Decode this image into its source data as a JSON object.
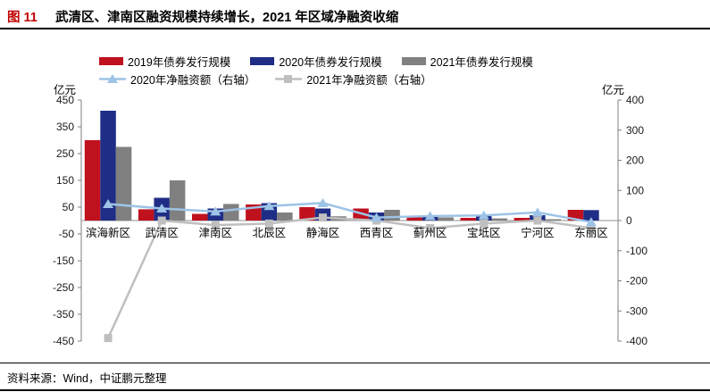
{
  "header": {
    "figure_label": "图 11",
    "title": "武清区、津南区融资规模持续增长，2021 年区域净融资收缩"
  },
  "footer": {
    "source": "资料来源：Wind，中证鹏元整理"
  },
  "chart_data": {
    "type": "bar",
    "subtype": "combo-bar-line-dual-axis",
    "title": "图 11 武清区、津南区融资规模持续增长，2021 年区域净融资收缩",
    "left_axis": {
      "unit": "亿元",
      "min": -450,
      "max": 450,
      "tick_step": 100
    },
    "right_axis": {
      "unit": "亿元",
      "min": -400,
      "max": 400,
      "tick_step": 100
    },
    "grid": false,
    "legend_position": "top",
    "categories": [
      "滨海新区",
      "武清区",
      "津南区",
      "北辰区",
      "静海区",
      "西青区",
      "蓟州区",
      "宝坻区",
      "宁河区",
      "东丽区"
    ],
    "series": [
      {
        "name": "2019年债券发行规模",
        "type": "bar",
        "axis": "left",
        "color": "#c0111f",
        "marker": "none",
        "values": [
          300,
          42,
          25,
          60,
          50,
          45,
          12,
          10,
          10,
          40
        ]
      },
      {
        "name": "2020年债券发行规模",
        "type": "bar",
        "axis": "left",
        "color": "#1f2d86",
        "marker": "none",
        "values": [
          410,
          85,
          45,
          65,
          45,
          30,
          20,
          18,
          20,
          39
        ]
      },
      {
        "name": "2021年债券发行规模",
        "type": "bar",
        "axis": "left",
        "color": "#808080",
        "marker": "none",
        "values": [
          275,
          150,
          62,
          30,
          16,
          40,
          12,
          8,
          5,
          0
        ]
      },
      {
        "name": "2020年净融资额（右轴）",
        "type": "line",
        "axis": "right",
        "color": "#9dc3e6",
        "marker": "triangle",
        "values": [
          55,
          40,
          30,
          48,
          58,
          10,
          15,
          17,
          27,
          -5
        ]
      },
      {
        "name": "2021年净融资额（右轴）",
        "type": "line",
        "axis": "right",
        "color": "#bfbfbf",
        "marker": "square",
        "values": [
          -390,
          0,
          -15,
          -10,
          10,
          0,
          -25,
          -10,
          0,
          -25
        ]
      }
    ]
  }
}
